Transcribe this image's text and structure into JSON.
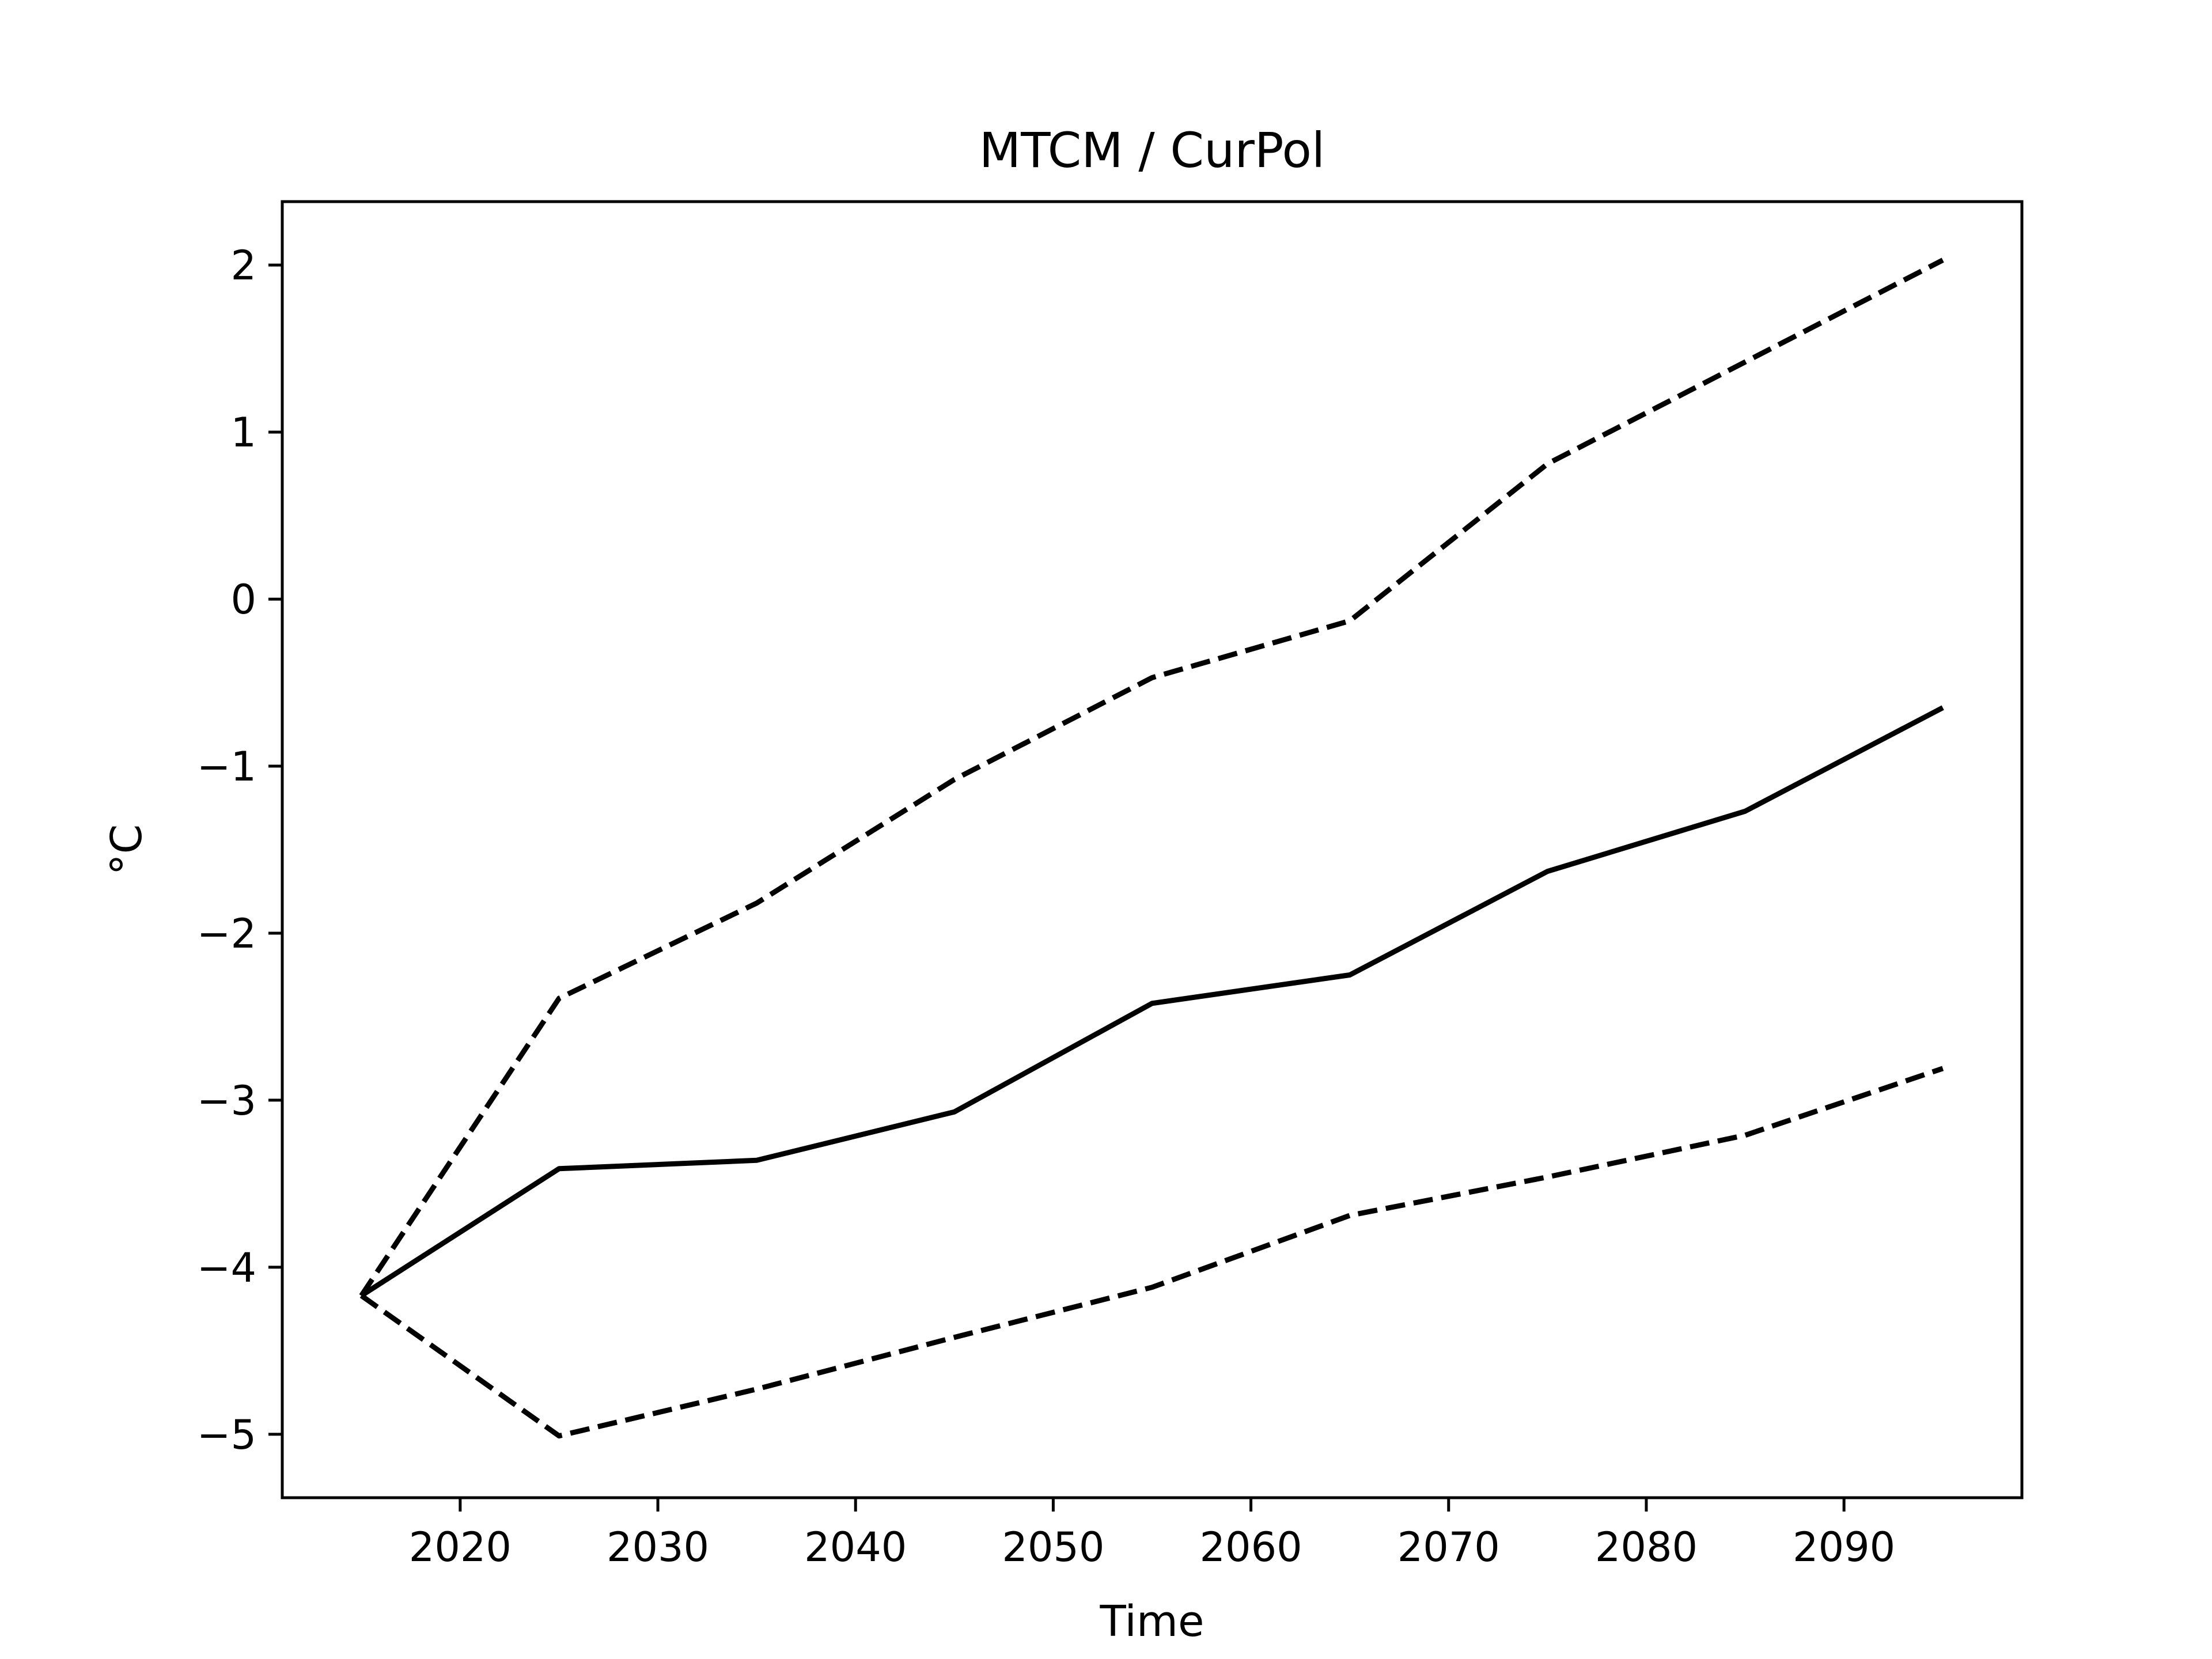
{
  "chart_data": {
    "type": "line",
    "title": "MTCM / CurPol",
    "xlabel": "Time",
    "ylabel": "°C",
    "x": [
      2015,
      2025,
      2035,
      2045,
      2055,
      2065,
      2075,
      2085,
      2095
    ],
    "series": [
      {
        "style": "solid",
        "values": [
          -4.17,
          -3.41,
          -3.36,
          -3.07,
          -2.42,
          -2.25,
          -1.63,
          -1.27,
          -0.65
        ]
      },
      {
        "style": "dashed",
        "values": [
          -4.17,
          -2.39,
          -1.82,
          -1.08,
          -0.47,
          -0.13,
          0.81,
          1.42,
          2.03
        ]
      },
      {
        "style": "dashed",
        "values": [
          -4.17,
          -5.01,
          -4.73,
          -4.42,
          -4.12,
          -3.69,
          -3.46,
          -3.21,
          -2.81
        ]
      }
    ],
    "xticks": [
      2020,
      2030,
      2040,
      2050,
      2060,
      2070,
      2080,
      2090
    ],
    "yticks": [
      -5,
      -4,
      -3,
      -2,
      -1,
      0,
      1,
      2
    ],
    "ytick_labels": [
      "−5",
      "−4",
      "−3",
      "−2",
      "−1",
      "0",
      "1",
      "2"
    ],
    "xlim": [
      2011,
      2099
    ],
    "ylim": [
      -5.38,
      2.38
    ],
    "grid": false,
    "line_color": "#000000"
  }
}
